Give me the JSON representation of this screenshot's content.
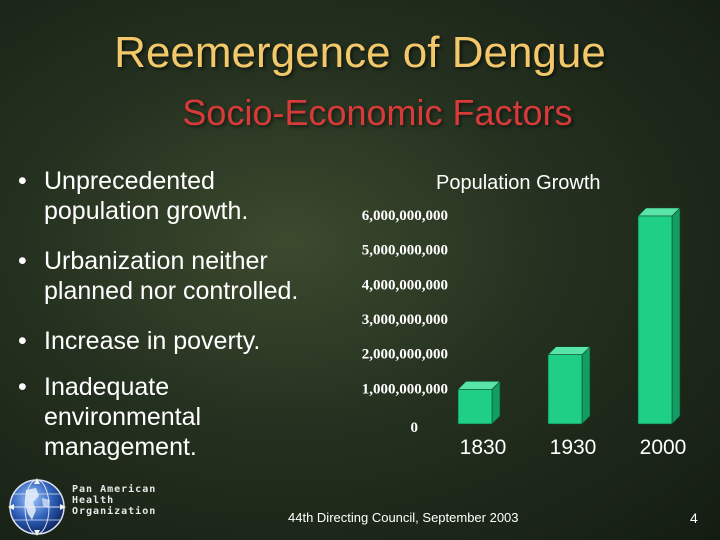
{
  "slide": {
    "title": "Reemergence of Dengue",
    "subtitle": "Socio-Economic Factors",
    "bullets": [
      {
        "lines": [
          "Unprecedented",
          "population growth."
        ]
      },
      {
        "lines": [
          "Urbanization neither",
          "planned nor controlled."
        ]
      },
      {
        "lines": [
          "Increase in poverty."
        ]
      },
      {
        "lines": [
          "Inadequate",
          "environmental",
          "management."
        ]
      }
    ],
    "bullet_symbol": "•",
    "logo": {
      "icon": "globe-icon",
      "org_lines": [
        "Pan American",
        "Health",
        "Organization"
      ]
    },
    "footer": "44th Directing Council, September 2003",
    "page_number": "4"
  },
  "colors": {
    "title": "#f2c86a",
    "subtitle": "#d83a3a",
    "bar_front": "#1fcf86",
    "bar_side": "#129e63",
    "bar_top": "#5ae5a8",
    "axis_text": "#ffffff"
  },
  "chart_data": {
    "type": "bar",
    "title": "Population Growth",
    "categories": [
      "1830",
      "1930",
      "2000"
    ],
    "values": [
      1000000000,
      2000000000,
      6000000000
    ],
    "y_ticks": [
      "0",
      "1,000,000,000",
      "2,000,000,000",
      "3,000,000,000",
      "4,000,000,000",
      "5,000,000,000",
      "6,000,000,000"
    ],
    "ylim": [
      0,
      6000000000
    ],
    "grid": false,
    "legend": "none",
    "three_d": true
  }
}
